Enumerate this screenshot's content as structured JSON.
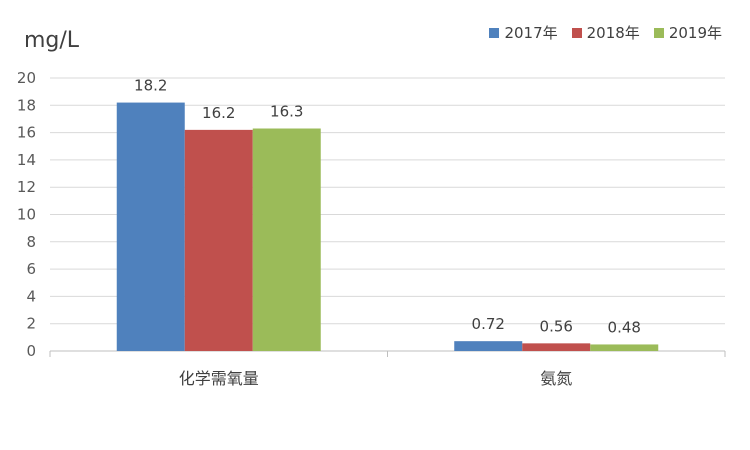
{
  "chart_data": {
    "type": "bar",
    "unit_label": "mg/L",
    "categories": [
      "化学需氧量",
      "氨氮"
    ],
    "series": [
      {
        "name": "2017年",
        "color": "#4f81bd",
        "values": [
          18.2,
          0.72
        ],
        "labels": [
          "18.2",
          "0.72"
        ]
      },
      {
        "name": "2018年",
        "color": "#c0504d",
        "values": [
          16.2,
          0.56
        ],
        "labels": [
          "16.2",
          "0.56"
        ]
      },
      {
        "name": "2019年",
        "color": "#9bbb59",
        "values": [
          16.3,
          0.48
        ],
        "labels": [
          "16.3",
          "0.48"
        ]
      }
    ],
    "ylim": [
      0,
      20
    ],
    "yticks": [
      "0",
      "2",
      "4",
      "6",
      "8",
      "10",
      "12",
      "14",
      "16",
      "18",
      "20"
    ],
    "grid": true,
    "legend_position": "top-right"
  }
}
